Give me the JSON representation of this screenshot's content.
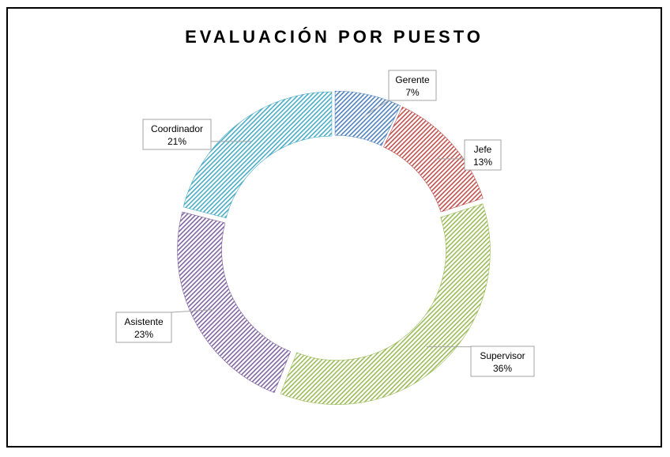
{
  "chart_data": {
    "type": "pie",
    "variant": "doughnut",
    "title": "EVALUACIÓN POR PUESTO",
    "series": [
      {
        "name": "Gerente",
        "value": 7,
        "label_value": "7%",
        "color": "#4f81bd"
      },
      {
        "name": "Jefe",
        "value": 13,
        "label_value": "13%",
        "color": "#c0504d"
      },
      {
        "name": "Supervisor",
        "value": 36,
        "label_value": "36%",
        "color": "#9bbb59"
      },
      {
        "name": "Asistente",
        "value": 23,
        "label_value": "23%",
        "color": "#8064a2"
      },
      {
        "name": "Coordinador",
        "value": 21,
        "label_value": "21%",
        "color": "#4bacc6"
      }
    ],
    "start_angle_deg": 0,
    "fill_pattern": "diagonal-hatch",
    "legend": "none",
    "data_labels": "callouts"
  }
}
